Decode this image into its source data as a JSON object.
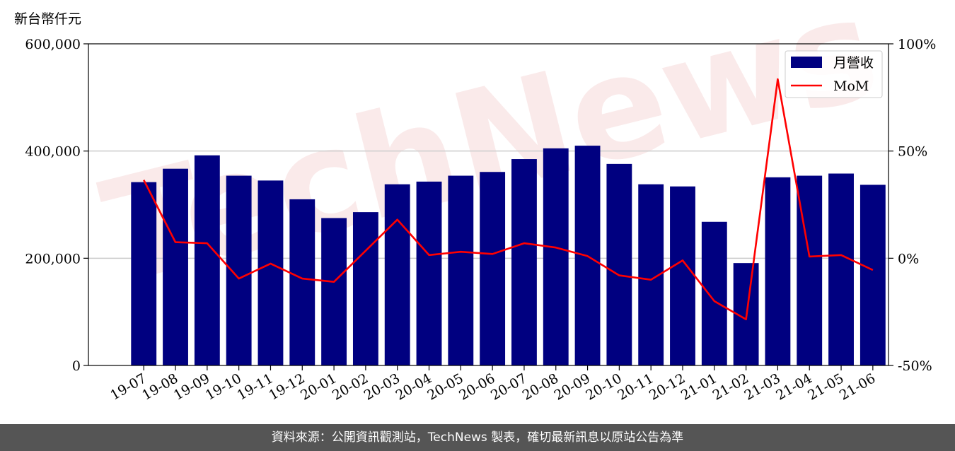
{
  "chart_data": {
    "type": "bar",
    "y_unit_label": "新台幣仟元",
    "categories": [
      "19-07",
      "19-08",
      "19-09",
      "19-10",
      "19-11",
      "19-12",
      "20-01",
      "20-02",
      "20-03",
      "20-04",
      "20-05",
      "20-06",
      "20-07",
      "20-08",
      "20-09",
      "20-10",
      "20-11",
      "20-12",
      "21-01",
      "21-02",
      "21-03",
      "21-04",
      "21-05",
      "21-06"
    ],
    "series": [
      {
        "name": "月營收",
        "type": "bar",
        "axis": "left",
        "color": "#000080",
        "values": [
          342000,
          367000,
          392000,
          354000,
          345000,
          310000,
          275000,
          286000,
          338000,
          343000,
          354000,
          361000,
          385000,
          405000,
          410000,
          376000,
          338000,
          334000,
          268000,
          191000,
          351000,
          354000,
          358000,
          337000
        ]
      },
      {
        "name": "MoM",
        "type": "line",
        "axis": "right",
        "color": "#ff0000",
        "unit": "%",
        "values": [
          36.5,
          7.5,
          7.0,
          -9.5,
          -2.5,
          -9.5,
          -11.0,
          3.5,
          18.0,
          1.5,
          3.0,
          2.0,
          7.0,
          5.0,
          1.0,
          -8.0,
          -10.0,
          -1.0,
          -20.0,
          -28.5,
          83.5,
          0.8,
          1.5,
          -5.5
        ]
      }
    ],
    "left_axis": {
      "ylim": [
        0,
        600000
      ],
      "ticks": [
        0,
        200000,
        400000,
        600000
      ],
      "tick_labels": [
        "0",
        "200,000",
        "400,000",
        "600,000"
      ]
    },
    "right_axis": {
      "ylim": [
        -50,
        100
      ],
      "ticks": [
        -50,
        0,
        50,
        100
      ],
      "tick_labels": [
        "-50%",
        "0%",
        "50%",
        "100%"
      ]
    },
    "grid": "horizontal",
    "legend_position": "top-right"
  },
  "watermark": {
    "text": "TechNews",
    "color": "#e8a0a0"
  },
  "footer": {
    "text": "資料來源：公開資訊觀測站，TechNews 製表，確切最新訊息以原站公告為準"
  }
}
